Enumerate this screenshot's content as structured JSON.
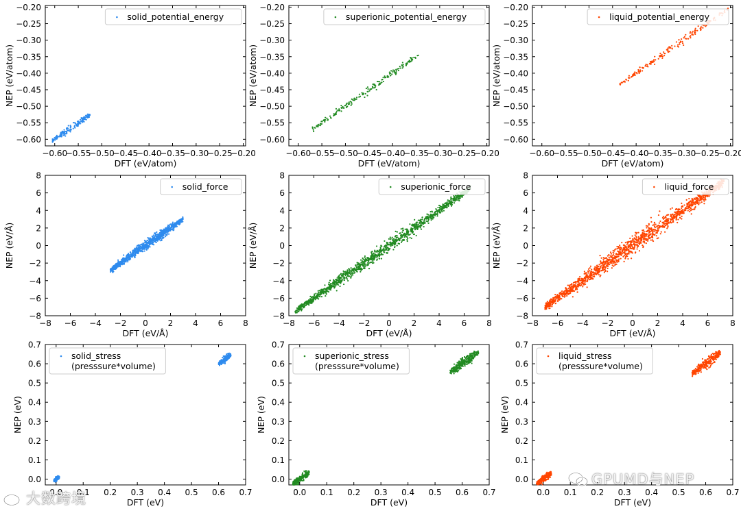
{
  "watermark": {
    "left_text": "大数跨境",
    "right_text": "GPUMD与NEP"
  },
  "colors": {
    "solid": "#2e8bee",
    "superionic": "#228b22",
    "liquid": "#ff4500"
  },
  "chart_data": [
    {
      "type": "scatter",
      "row": 0,
      "col": 0,
      "legend": "solid_potential_energy",
      "legend_loc": "upper-right",
      "xlabel": "DFT (eV/atom)",
      "ylabel": "NEP (eV/atom)",
      "xlim": [
        -0.62,
        -0.195
      ],
      "ylim": [
        -0.62,
        -0.195
      ],
      "xticks": [
        -0.6,
        -0.55,
        -0.5,
        -0.45,
        -0.4,
        -0.35,
        -0.3,
        -0.25,
        -0.2
      ],
      "xtick_labels": [
        "−0.60",
        "−0.55",
        "−0.50",
        "−0.45",
        "−0.40",
        "−0.35",
        "−0.30",
        "−0.25",
        "−0.20"
      ],
      "yticks": [
        -0.6,
        -0.55,
        -0.5,
        -0.45,
        -0.4,
        -0.35,
        -0.3,
        -0.25,
        -0.2
      ],
      "ytick_labels": [
        "−0.60",
        "−0.55",
        "−0.50",
        "−0.45",
        "−0.40",
        "−0.35",
        "−0.30",
        "−0.25",
        "−0.20"
      ],
      "color": "solid",
      "clusters": [
        {
          "x_range": [
            -0.605,
            -0.525
          ],
          "spread": 0.004,
          "n": 170
        }
      ]
    },
    {
      "type": "scatter",
      "row": 0,
      "col": 1,
      "legend": "superionic_potential_energy",
      "legend_loc": "upper-right",
      "xlabel": "DFT (eV/atom)",
      "ylabel": "NEP (eV/atom)",
      "xlim": [
        -0.62,
        -0.195
      ],
      "ylim": [
        -0.62,
        -0.195
      ],
      "xticks": [
        -0.6,
        -0.55,
        -0.5,
        -0.45,
        -0.4,
        -0.35,
        -0.3,
        -0.25,
        -0.2
      ],
      "xtick_labels": [
        "−0.60",
        "−0.55",
        "−0.50",
        "−0.45",
        "−0.40",
        "−0.35",
        "−0.30",
        "−0.25",
        "−0.20"
      ],
      "yticks": [
        -0.6,
        -0.55,
        -0.5,
        -0.45,
        -0.4,
        -0.35,
        -0.3,
        -0.25,
        -0.2
      ],
      "ytick_labels": [
        "−0.60",
        "−0.55",
        "−0.50",
        "−0.45",
        "−0.40",
        "−0.35",
        "−0.30",
        "−0.25",
        "−0.20"
      ],
      "color": "superionic",
      "clusters": [
        {
          "x_range": [
            -0.57,
            -0.345
          ],
          "spread": 0.004,
          "n": 190
        }
      ]
    },
    {
      "type": "scatter",
      "row": 0,
      "col": 2,
      "legend": "liquid_potential_energy",
      "legend_loc": "upper-right",
      "xlabel": "DFT (eV/atom)",
      "ylabel": "NEP (eV/atom)",
      "xlim": [
        -0.62,
        -0.195
      ],
      "ylim": [
        -0.62,
        -0.195
      ],
      "xticks": [
        -0.6,
        -0.55,
        -0.5,
        -0.45,
        -0.4,
        -0.35,
        -0.3,
        -0.25,
        -0.2
      ],
      "xtick_labels": [
        "−0.60",
        "−0.55",
        "−0.50",
        "−0.45",
        "−0.40",
        "−0.35",
        "−0.30",
        "−0.25",
        "−0.20"
      ],
      "yticks": [
        -0.6,
        -0.55,
        -0.5,
        -0.45,
        -0.4,
        -0.35,
        -0.3,
        -0.25,
        -0.2
      ],
      "ytick_labels": [
        "−0.60",
        "−0.55",
        "−0.50",
        "−0.45",
        "−0.40",
        "−0.35",
        "−0.30",
        "−0.25",
        "−0.20"
      ],
      "color": "liquid",
      "clusters": [
        {
          "x_range": [
            -0.435,
            -0.205
          ],
          "spread": 0.004,
          "n": 190
        }
      ]
    },
    {
      "type": "scatter",
      "row": 1,
      "col": 0,
      "legend": "solid_force",
      "legend_loc": "upper-right",
      "xlabel": "DFT (eV/Å)",
      "ylabel": "NEP (eV/Å)",
      "xlim": [
        -8,
        8
      ],
      "ylim": [
        -8,
        8
      ],
      "xticks": [
        -8,
        -6,
        -4,
        -2,
        0,
        2,
        4,
        6,
        8
      ],
      "xtick_labels": [
        "−8",
        "−6",
        "−4",
        "−2",
        "0",
        "2",
        "4",
        "6",
        "8"
      ],
      "yticks": [
        -8,
        -6,
        -4,
        -2,
        0,
        2,
        4,
        6,
        8
      ],
      "ytick_labels": [
        "−8",
        "−6",
        "−4",
        "−2",
        "0",
        "2",
        "4",
        "6",
        "8"
      ],
      "color": "solid",
      "clusters": [
        {
          "x_range": [
            -2.8,
            3.0
          ],
          "spread": 0.2,
          "n": 900
        }
      ]
    },
    {
      "type": "scatter",
      "row": 1,
      "col": 1,
      "legend": "superionic_force",
      "legend_loc": "upper-right",
      "xlabel": "DFT (eV/Å)",
      "ylabel": "NEP (eV/Å)",
      "xlim": [
        -8,
        8
      ],
      "ylim": [
        -8,
        8
      ],
      "xticks": [
        -8,
        -6,
        -4,
        -2,
        0,
        2,
        4,
        6,
        8
      ],
      "xtick_labels": [
        "−8",
        "−6",
        "−4",
        "−2",
        "0",
        "2",
        "4",
        "6",
        "8"
      ],
      "yticks": [
        -8,
        -6,
        -4,
        -2,
        0,
        2,
        4,
        6,
        8
      ],
      "ytick_labels": [
        "−8",
        "−6",
        "−4",
        "−2",
        "0",
        "2",
        "4",
        "6",
        "8"
      ],
      "color": "superionic",
      "clusters": [
        {
          "x_range": [
            -7.5,
            6.5
          ],
          "spread": 0.25,
          "n": 1300
        }
      ]
    },
    {
      "type": "scatter",
      "row": 1,
      "col": 2,
      "legend": "liquid_force",
      "legend_loc": "upper-right",
      "xlabel": "DFT (eV/Å)",
      "ylabel": "NEP (eV/Å)",
      "xlim": [
        -8,
        8
      ],
      "ylim": [
        -8,
        8
      ],
      "xticks": [
        -8,
        -6,
        -4,
        -2,
        0,
        2,
        4,
        6,
        8
      ],
      "xtick_labels": [
        "−8",
        "−6",
        "−4",
        "−2",
        "0",
        "2",
        "4",
        "6",
        "8"
      ],
      "yticks": [
        -8,
        -6,
        -4,
        -2,
        0,
        2,
        4,
        6,
        8
      ],
      "ytick_labels": [
        "−8",
        "−6",
        "−4",
        "−2",
        "0",
        "2",
        "4",
        "6",
        "8"
      ],
      "color": "liquid",
      "clusters": [
        {
          "x_range": [
            -7.0,
            7.3
          ],
          "spread": 0.35,
          "n": 1500
        }
      ]
    },
    {
      "type": "scatter",
      "row": 2,
      "col": 0,
      "legend": "solid_stress\n(presssure*volume)",
      "legend_loc": "upper-left",
      "xlabel": "DFT (eV)",
      "ylabel": "NEP (eV)",
      "xlim": [
        -0.04,
        0.7
      ],
      "ylim": [
        -0.03,
        0.7
      ],
      "xticks": [
        0.0,
        0.1,
        0.2,
        0.3,
        0.4,
        0.5,
        0.6,
        0.7
      ],
      "xtick_labels": [
        "0.0",
        "0.1",
        "0.2",
        "0.3",
        "0.4",
        "0.5",
        "0.6",
        "0.7"
      ],
      "yticks": [
        0.0,
        0.1,
        0.2,
        0.3,
        0.4,
        0.5,
        0.6,
        0.7
      ],
      "ytick_labels": [
        "0.0",
        "0.1",
        "0.2",
        "0.3",
        "0.4",
        "0.5",
        "0.6",
        "0.7"
      ],
      "color": "solid",
      "clusters": [
        {
          "x_range": [
            -0.008,
            0.012
          ],
          "spread": 0.004,
          "n": 160
        },
        {
          "x_range": [
            0.6,
            0.645
          ],
          "spread": 0.006,
          "n": 200
        }
      ]
    },
    {
      "type": "scatter",
      "row": 2,
      "col": 1,
      "legend": "superionic_stress\n(presssure*volume)",
      "legend_loc": "upper-left",
      "xlabel": "DFT (eV)",
      "ylabel": "NEP (eV)",
      "xlim": [
        -0.04,
        0.7
      ],
      "ylim": [
        -0.03,
        0.7
      ],
      "xticks": [
        0.0,
        0.1,
        0.2,
        0.3,
        0.4,
        0.5,
        0.6,
        0.7
      ],
      "xtick_labels": [
        "0.0",
        "0.1",
        "0.2",
        "0.3",
        "0.4",
        "0.5",
        "0.6",
        "0.7"
      ],
      "yticks": [
        0.0,
        0.1,
        0.2,
        0.3,
        0.4,
        0.5,
        0.6,
        0.7
      ],
      "ytick_labels": [
        "0.0",
        "0.1",
        "0.2",
        "0.3",
        "0.4",
        "0.5",
        "0.6",
        "0.7"
      ],
      "color": "superionic",
      "clusters": [
        {
          "x_range": [
            -0.025,
            0.035
          ],
          "spread": 0.008,
          "n": 260
        },
        {
          "x_range": [
            0.555,
            0.66
          ],
          "spread": 0.01,
          "n": 320
        }
      ]
    },
    {
      "type": "scatter",
      "row": 2,
      "col": 2,
      "legend": "liquid_stress\n(presssure*volume)",
      "legend_loc": "upper-left",
      "xlabel": "DFT (eV)",
      "ylabel": "NEP (eV)",
      "xlim": [
        -0.04,
        0.7
      ],
      "ylim": [
        -0.03,
        0.7
      ],
      "xticks": [
        0.0,
        0.1,
        0.2,
        0.3,
        0.4,
        0.5,
        0.6,
        0.7
      ],
      "xtick_labels": [
        "0.0",
        "0.1",
        "0.2",
        "0.3",
        "0.4",
        "0.5",
        "0.6",
        "0.7"
      ],
      "yticks": [
        0.0,
        0.1,
        0.2,
        0.3,
        0.4,
        0.5,
        0.6,
        0.7
      ],
      "ytick_labels": [
        "0.0",
        "0.1",
        "0.2",
        "0.3",
        "0.4",
        "0.5",
        "0.6",
        "0.7"
      ],
      "color": "liquid",
      "clusters": [
        {
          "x_range": [
            -0.025,
            0.03
          ],
          "spread": 0.007,
          "n": 240
        },
        {
          "x_range": [
            0.55,
            0.655
          ],
          "spread": 0.01,
          "n": 320
        }
      ]
    }
  ]
}
